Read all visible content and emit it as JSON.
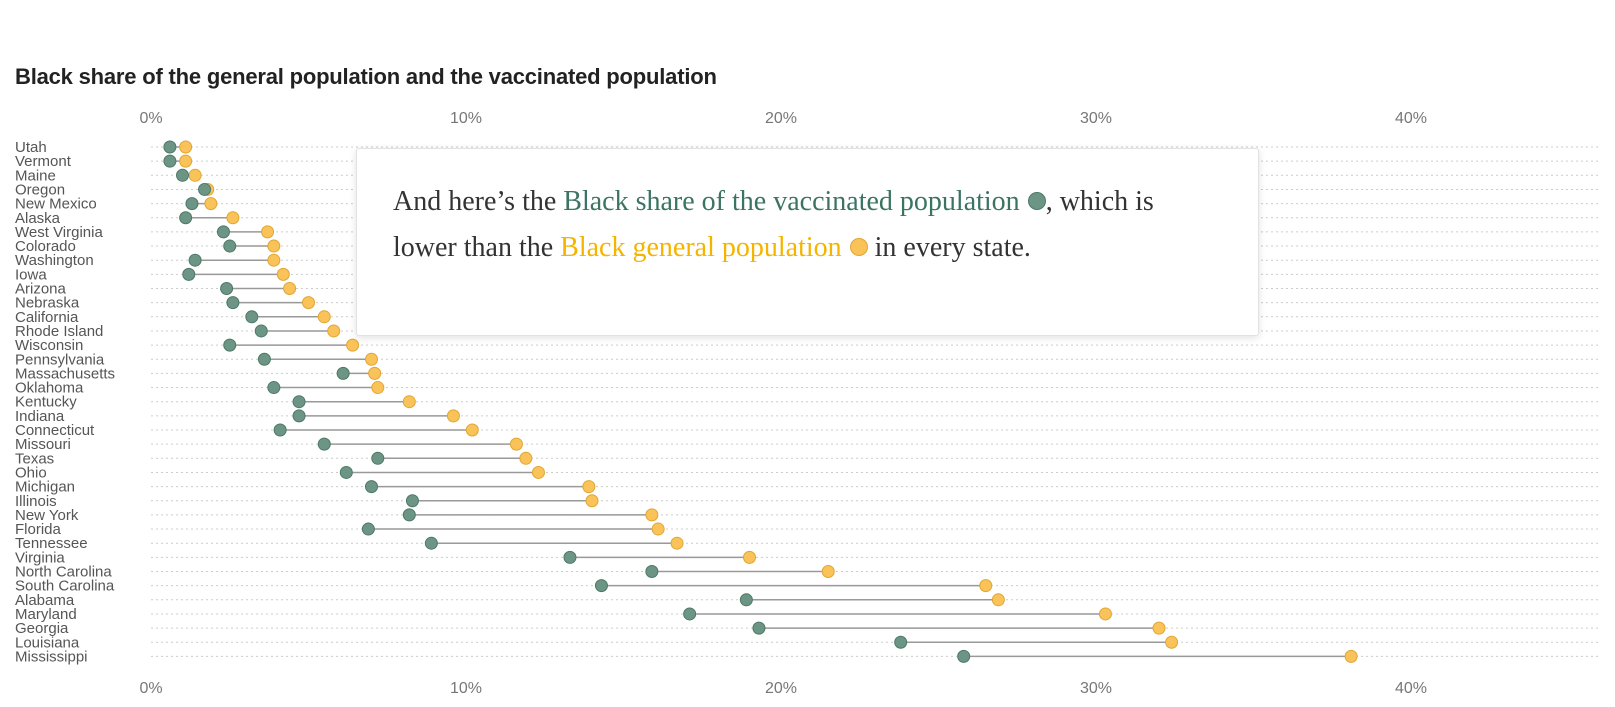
{
  "title": "Black share of the general population and the vaccinated population",
  "annotation": {
    "part1": "And here’s the ",
    "vaccinated_phrase": "Black share of the vaccinated population",
    "part2": ", which is lower than the ",
    "general_phrase": "Black general population",
    "part3": " in every state."
  },
  "colors": {
    "vaccinated": "#6c9585",
    "vaccinated_stroke": "#4d7868",
    "general": "#f9c35a",
    "general_stroke": "#e0a632",
    "connector": "#999999",
    "gridline": "#cccccc"
  },
  "chart_data": {
    "type": "dot-plot",
    "title": "Black share of the general population and the vaccinated population",
    "xlim": [
      0,
      46
    ],
    "xticks": [
      {
        "value": 0,
        "label": "0%"
      },
      {
        "value": 10,
        "label": "10%"
      },
      {
        "value": 20,
        "label": "20%"
      },
      {
        "value": 30,
        "label": "30%"
      },
      {
        "value": 40,
        "label": "40%"
      }
    ],
    "grid": true,
    "series": [
      {
        "name": "Black share of the vaccinated population",
        "key": "vaccinated"
      },
      {
        "name": "Black general population",
        "key": "general"
      }
    ],
    "categories": [
      "Utah",
      "Vermont",
      "Maine",
      "Oregon",
      "New Mexico",
      "Alaska",
      "West Virginia",
      "Colorado",
      "Washington",
      "Iowa",
      "Arizona",
      "Nebraska",
      "California",
      "Rhode Island",
      "Wisconsin",
      "Pennsylvania",
      "Massachusetts",
      "Oklahoma",
      "Kentucky",
      "Indiana",
      "Connecticut",
      "Missouri",
      "Texas",
      "Ohio",
      "Michigan",
      "Illinois",
      "New York",
      "Florida",
      "Tennessee",
      "Virginia",
      "North Carolina",
      "South Carolina",
      "Alabama",
      "Maryland",
      "Georgia",
      "Louisiana",
      "Mississippi"
    ],
    "vaccinated": [
      0.6,
      0.6,
      1.0,
      1.7,
      1.3,
      1.1,
      2.3,
      2.5,
      1.4,
      1.2,
      2.4,
      2.6,
      3.2,
      3.5,
      2.5,
      3.6,
      6.1,
      3.9,
      4.7,
      4.7,
      4.1,
      5.5,
      7.2,
      6.2,
      7.0,
      8.3,
      8.2,
      6.9,
      8.9,
      13.3,
      15.9,
      14.3,
      18.9,
      17.1,
      19.3,
      23.8,
      25.8
    ],
    "general": [
      1.1,
      1.1,
      1.4,
      1.8,
      1.9,
      2.6,
      3.7,
      3.9,
      3.9,
      4.2,
      4.4,
      5.0,
      5.5,
      5.8,
      6.4,
      7.0,
      7.1,
      7.2,
      8.2,
      9.6,
      10.2,
      11.6,
      11.9,
      12.3,
      13.9,
      14.0,
      15.9,
      16.1,
      16.7,
      19.0,
      21.5,
      26.5,
      26.9,
      30.3,
      32.0,
      32.4,
      38.1
    ]
  }
}
